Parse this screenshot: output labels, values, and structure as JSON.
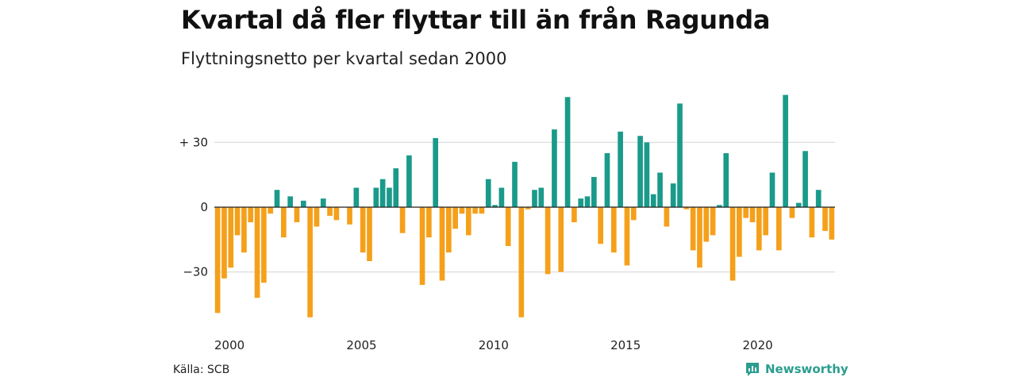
{
  "header": {
    "title": "Kvartal då fler flyttar till än från Ragunda",
    "subtitle": "Flyttningsnetto per kvartal sedan 2000"
  },
  "footer": {
    "source": "Källa: SCB",
    "brand": "Newsworthy",
    "brand_icon": "newsworthy-logo-icon"
  },
  "colors": {
    "positive": "#1a9a8a",
    "negative": "#f5a01a",
    "grid": "#dddddd",
    "zero_line": "#222222",
    "brand": "#2a9d8f"
  },
  "chart_data": {
    "type": "bar",
    "title": "Kvartal då fler flyttar till än från Ragunda",
    "subtitle": "Flyttningsnetto per kvartal sedan 2000",
    "xlabel": "",
    "ylabel": "",
    "ylim": [
      -52,
      52
    ],
    "yticks": [
      {
        "value": 30,
        "label": "+ 30"
      },
      {
        "value": 0,
        "label": "0"
      },
      {
        "value": -30,
        "label": "−30"
      }
    ],
    "xticks": [
      {
        "index": 0,
        "label": "2000"
      },
      {
        "index": 20,
        "label": "2005"
      },
      {
        "index": 40,
        "label": "2010"
      },
      {
        "index": 60,
        "label": "2015"
      },
      {
        "index": 80,
        "label": "2020"
      }
    ],
    "start_year": 2000,
    "grid": true,
    "values": [
      -49,
      -33,
      -28,
      -13,
      -21,
      -7,
      -42,
      -35,
      -3,
      8,
      -14,
      5,
      -7,
      3,
      -51,
      -9,
      4,
      -4,
      -6,
      0,
      -8,
      9,
      -21,
      -25,
      9,
      13,
      9,
      18,
      -12,
      24,
      0,
      -36,
      -14,
      32,
      -34,
      -21,
      -10,
      -3,
      -13,
      -3,
      -3,
      13,
      1,
      9,
      -18,
      21,
      -51,
      -1,
      8,
      9,
      -31,
      36,
      -30,
      51,
      -7,
      4,
      5,
      14,
      -17,
      25,
      -21,
      35,
      -27,
      -6,
      33,
      30,
      6,
      16,
      -9,
      11,
      48,
      -1,
      -20,
      -28,
      -16,
      -13,
      1,
      25,
      -34,
      -23,
      -5,
      -7,
      -20,
      -13,
      16,
      -20,
      52,
      -5,
      2,
      26,
      -14,
      8,
      -11,
      -15
    ]
  }
}
